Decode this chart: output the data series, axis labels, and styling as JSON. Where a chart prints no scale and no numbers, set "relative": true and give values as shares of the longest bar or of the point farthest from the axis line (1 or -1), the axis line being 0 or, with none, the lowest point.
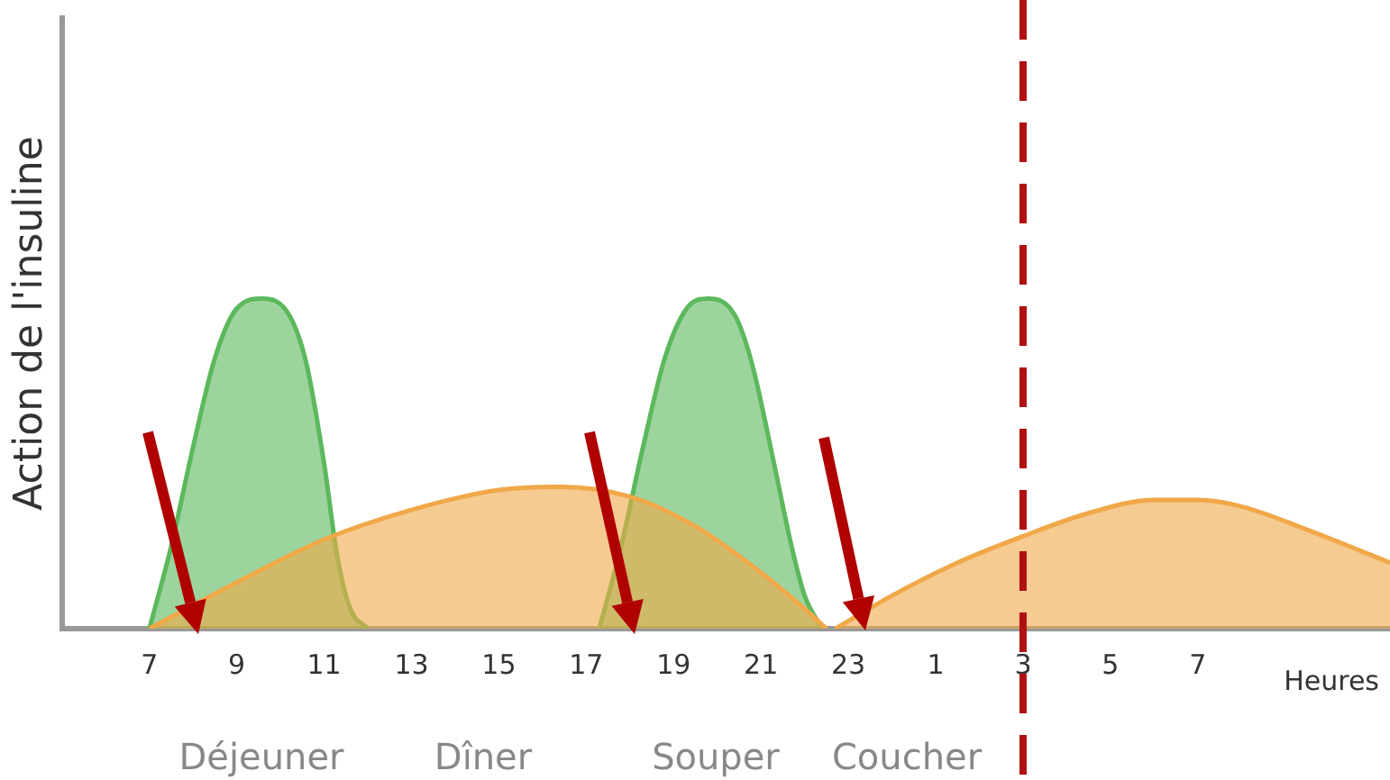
{
  "chart_data": {
    "type": "area",
    "relative": true,
    "ylabel": "Action de l'insuline",
    "xlabel": "Heures",
    "xlim": [
      "--01-01T05:00",
      "--01-02T11:24"
    ],
    "xticks": [
      {
        "value": "--01-01T07:00",
        "label": "7"
      },
      {
        "value": "--01-01T09:00",
        "label": "9"
      },
      {
        "value": "--01-01T11:00",
        "label": "11"
      },
      {
        "value": "--01-01T13:00",
        "label": "13"
      },
      {
        "value": "--01-01T15:00",
        "label": "15"
      },
      {
        "value": "--01-01T17:00",
        "label": "17"
      },
      {
        "value": "--01-01T19:00",
        "label": "19"
      },
      {
        "value": "--01-01T21:00",
        "label": "21"
      },
      {
        "value": "--01-01T23:00",
        "label": "23"
      },
      {
        "value": "--01-02T01:00",
        "label": "1"
      },
      {
        "value": "--01-02T03:00",
        "label": "3"
      },
      {
        "value": "--01-02T05:00",
        "label": "5"
      },
      {
        "value": "--01-02T07:00",
        "label": "7"
      }
    ],
    "grid": false,
    "legend": false,
    "series": [
      {
        "color": "#f0a848",
        "x": [
          "--01-01T07:00",
          "--01-01T09:00",
          "--01-01T11:00",
          "--01-01T13:00",
          "--01-01T15:00",
          "--01-01T16:24",
          "--01-01T18:00",
          "--01-01T19:30",
          "--01-01T21:00",
          "--01-01T22:00",
          "--01-01T22:30"
        ],
        "values": [
          0,
          0.14,
          0.27,
          0.36,
          0.42,
          0.43,
          0.4,
          0.31,
          0.17,
          0.06,
          0
        ]
      },
      {
        "color": "#f0a848",
        "x": [
          "--01-01T22:42",
          "--01-02T00:00",
          "--01-02T01:30",
          "--01-02T03:00",
          "--01-02T04:30",
          "--01-02T06:00",
          "--01-02T07:00",
          "--01-02T08:00",
          "--01-02T09:30",
          "--01-02T11:24"
        ],
        "values": [
          0,
          0.1,
          0.2,
          0.28,
          0.35,
          0.39,
          0.39,
          0.37,
          0.3,
          0.2
        ]
      },
      {
        "color": "#5cb85c",
        "x": [
          "--01-01T07:00",
          "--01-01T07:30",
          "--01-01T08:00",
          "--01-01T08:30",
          "--01-01T09:00",
          "--01-01T09:36",
          "--01-01T10:12",
          "--01-01T10:36",
          "--01-01T11:00",
          "--01-01T11:18",
          "--01-01T11:36",
          "--01-01T12:00"
        ],
        "values": [
          0,
          0.25,
          0.55,
          0.82,
          0.97,
          1,
          0.95,
          0.8,
          0.5,
          0.22,
          0.06,
          0
        ]
      },
      {
        "color": "#5cb85c",
        "x": [
          "--01-01T17:18",
          "--01-01T17:48",
          "--01-01T18:18",
          "--01-01T18:48",
          "--01-01T19:18",
          "--01-01T19:48",
          "--01-01T20:24",
          "--01-01T20:48",
          "--01-01T21:18",
          "--01-01T21:42",
          "--01-01T22:00",
          "--01-01T22:24"
        ],
        "values": [
          0,
          0.25,
          0.55,
          0.82,
          0.97,
          1,
          0.95,
          0.8,
          0.5,
          0.25,
          0.1,
          0
        ]
      }
    ],
    "ref_lines": [
      {
        "axis": "x",
        "value": "--01-02T03:00",
        "color": "#b01010",
        "line_style": "dashed"
      }
    ],
    "annotations": [
      "Déjeuner",
      "Dîner",
      "Souper",
      "Coucher"
    ]
  }
}
